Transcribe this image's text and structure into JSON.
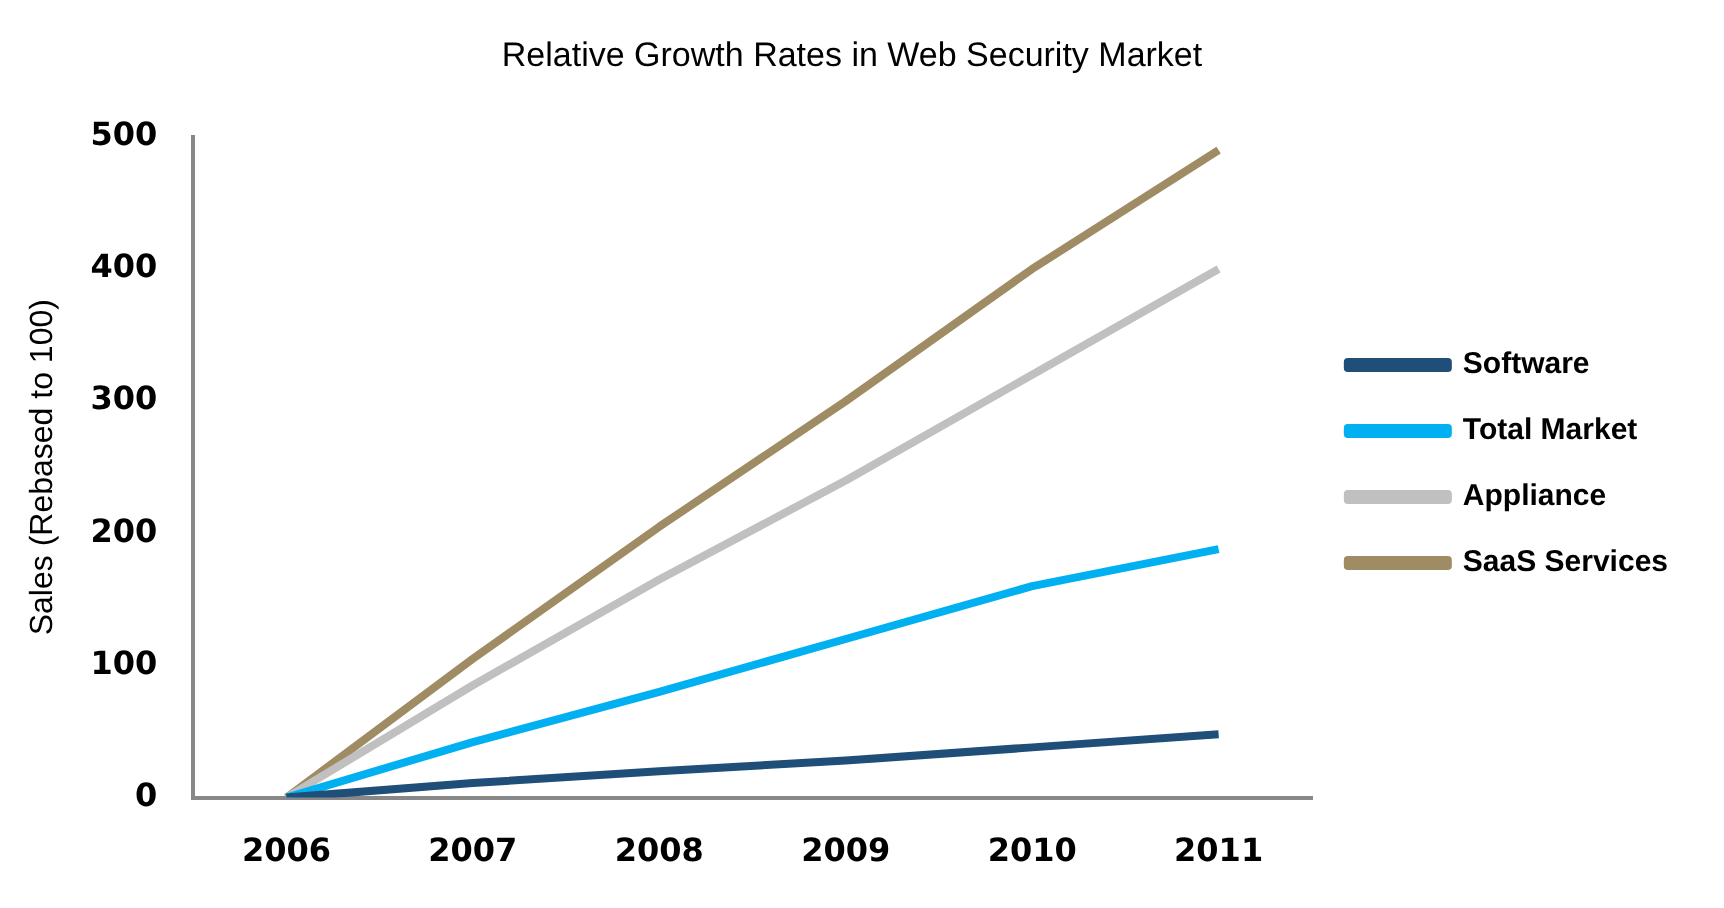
{
  "chart_data": {
    "type": "line",
    "title": "Relative Growth Rates in Web Security Market",
    "ylabel": "Sales (Rebased to 100)",
    "categories": [
      "2006",
      "2007",
      "2008",
      "2009",
      "2010",
      "2011"
    ],
    "series": [
      {
        "name": "Software",
        "color": "#1f4e79",
        "values": [
          0,
          11,
          20,
          28,
          38,
          48
        ]
      },
      {
        "name": "Total Market",
        "color": "#00b0f0",
        "values": [
          0,
          42,
          80,
          120,
          160,
          188
        ]
      },
      {
        "name": "Appliance",
        "color": "#c0c0c0",
        "values": [
          0,
          85,
          165,
          240,
          320,
          400
        ]
      },
      {
        "name": "SaaS Services",
        "color": "#a08c64",
        "values": [
          0,
          105,
          205,
          300,
          400,
          490
        ]
      }
    ],
    "ylim": [
      0,
      500
    ],
    "yticks": [
      0,
      100,
      200,
      300,
      400,
      500
    ],
    "grid": false,
    "legend": "right",
    "marker": "none",
    "line_style": "solid"
  }
}
